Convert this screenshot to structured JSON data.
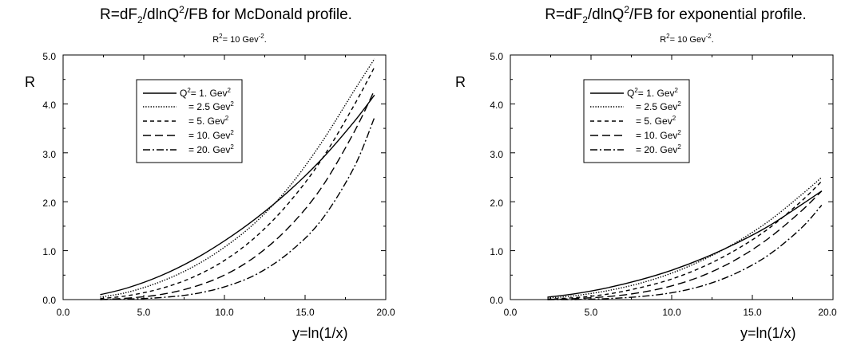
{
  "chart_data": [
    {
      "type": "line",
      "title": {
        "prefix": "R=dF",
        "sub": "2",
        "mid": "/dlnQ",
        "sup": "2",
        "suffix": "/FB  for  McDonald profile."
      },
      "subtitle": {
        "prefix": "R",
        "sup": "2",
        "mid": "= 10 Gev",
        "sup2": "-2",
        "suffix": "."
      },
      "xlabel": "y=ln(1/x)",
      "ylabel": "R",
      "xlim": [
        0,
        20
      ],
      "ylim": [
        0,
        5
      ],
      "xticks": [
        "0.0",
        "5.0",
        "10.0",
        "15.0",
        "20.0"
      ],
      "yticks": [
        "0.0",
        "1.0",
        "2.0",
        "3.0",
        "4.0",
        "5.0"
      ],
      "grid": false,
      "legend_position": "upper-left",
      "x": [
        2.3,
        4,
        6,
        8,
        10,
        12,
        14,
        16,
        18,
        19.3
      ],
      "series": [
        {
          "name": "Q",
          "name_sup": "2",
          "name_suffix": "= 1.  Gev",
          "unit_sup": "2",
          "dash": "solid",
          "values": [
            0.1,
            0.24,
            0.48,
            0.8,
            1.2,
            1.67,
            2.22,
            2.86,
            3.62,
            4.18
          ]
        },
        {
          "name": "= 2.5 Gev",
          "unit_sup": "2",
          "dash": "dotted",
          "values": [
            0.05,
            0.15,
            0.36,
            0.66,
            1.07,
            1.6,
            2.3,
            3.2,
            4.25,
            4.92
          ]
        },
        {
          "name": "= 5.  Gev",
          "unit_sup": "2",
          "dash": "dashed",
          "values": [
            0.02,
            0.08,
            0.22,
            0.45,
            0.8,
            1.3,
            1.98,
            2.85,
            3.95,
            4.75
          ]
        },
        {
          "name": "= 10. Gev",
          "unit_sup": "2",
          "dash": "longdash",
          "values": [
            0.0,
            0.03,
            0.1,
            0.25,
            0.5,
            0.9,
            1.48,
            2.28,
            3.4,
            4.28
          ]
        },
        {
          "name": "= 20. Gev",
          "unit_sup": "2",
          "dash": "dashdot",
          "values": [
            0.0,
            0.01,
            0.04,
            0.11,
            0.26,
            0.52,
            0.96,
            1.62,
            2.68,
            3.72
          ]
        }
      ]
    },
    {
      "type": "line",
      "title": {
        "prefix": "R=dF",
        "sub": "2",
        "mid": "/dlnQ",
        "sup": "2",
        "suffix": "/FB  for  exponential profile."
      },
      "subtitle": {
        "prefix": "R",
        "sup": "2",
        "mid": "= 10 Gev",
        "sup2": "-2",
        "suffix": "."
      },
      "xlabel": "y=ln(1/x)",
      "ylabel": "R",
      "xlim": [
        0,
        20
      ],
      "ylim": [
        0,
        5
      ],
      "xticks": [
        "0.0",
        "5.0",
        "10.0",
        "15.0",
        "20.0"
      ],
      "yticks": [
        "0.0",
        "1.0",
        "2.0",
        "3.0",
        "4.0",
        "5.0"
      ],
      "grid": false,
      "legend_position": "upper-left",
      "x": [
        2.3,
        4,
        6,
        8,
        10,
        12,
        14,
        16,
        18,
        19.3
      ],
      "series": [
        {
          "name": "Q",
          "name_sup": "2",
          "name_suffix": "= 1.  Gev",
          "unit_sup": "2",
          "dash": "solid",
          "values": [
            0.05,
            0.12,
            0.24,
            0.4,
            0.6,
            0.85,
            1.15,
            1.5,
            1.93,
            2.22
          ]
        },
        {
          "name": "= 2.5 Gev",
          "unit_sup": "2",
          "dash": "dotted",
          "values": [
            0.03,
            0.08,
            0.18,
            0.33,
            0.54,
            0.82,
            1.17,
            1.6,
            2.13,
            2.5
          ]
        },
        {
          "name": "= 5.  Gev",
          "unit_sup": "2",
          "dash": "dashed",
          "values": [
            0.01,
            0.04,
            0.11,
            0.24,
            0.42,
            0.68,
            1.02,
            1.45,
            2.0,
            2.42
          ]
        },
        {
          "name": "= 10. Gev",
          "unit_sup": "2",
          "dash": "longdash",
          "values": [
            0.0,
            0.02,
            0.06,
            0.14,
            0.28,
            0.5,
            0.82,
            1.25,
            1.8,
            2.22
          ]
        },
        {
          "name": "= 20. Gev",
          "unit_sup": "2",
          "dash": "dashdot",
          "values": [
            0.0,
            0.0,
            0.02,
            0.06,
            0.14,
            0.29,
            0.54,
            0.91,
            1.45,
            1.93
          ]
        }
      ]
    }
  ]
}
